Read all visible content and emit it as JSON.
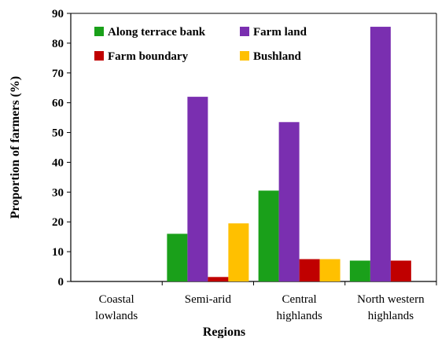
{
  "chart_data": {
    "type": "bar",
    "title": "",
    "xlabel": "Regions",
    "ylabel": "Proportion of farmers (%)",
    "ylim": [
      0,
      90
    ],
    "yticks": [
      0,
      10,
      20,
      30,
      40,
      50,
      60,
      70,
      80,
      90
    ],
    "grid": false,
    "legend_position": "top-left",
    "categories": [
      [
        "Coastal",
        "lowlands"
      ],
      [
        "Semi-arid"
      ],
      [
        "Central",
        "highlands"
      ],
      [
        "North western",
        "highlands"
      ]
    ],
    "series": [
      {
        "name": "Along terrace bank",
        "color": "#1aa01a",
        "values": [
          0,
          16,
          30.5,
          7
        ]
      },
      {
        "name": "Farm land",
        "color": "#7a2fb0",
        "values": [
          0,
          62,
          53.5,
          85.5
        ]
      },
      {
        "name": "Farm boundary",
        "color": "#c00000",
        "values": [
          0,
          1.5,
          7.5,
          7
        ]
      },
      {
        "name": "Bushland",
        "color": "#ffc000",
        "values": [
          0,
          19.5,
          7.5,
          null
        ]
      }
    ]
  }
}
